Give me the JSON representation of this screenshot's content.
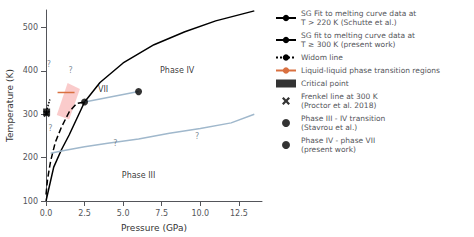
{
  "chart_data": {
    "type": "line",
    "xlabel": "Pressure (GPa)",
    "ylabel": "Temperature (K)",
    "xlim": [
      0,
      14
    ],
    "ylim": [
      100,
      540
    ],
    "xticks": [
      {
        "value": 0,
        "label": "0.0"
      },
      2.5,
      {
        "value": 5.0,
        "label": "5.0"
      },
      7.5,
      {
        "value": 10.0,
        "label": "10.0"
      },
      12.5
    ],
    "yticks": [
      100,
      200,
      300,
      400,
      500
    ],
    "grid": false,
    "legend": "right",
    "series": [
      {
        "name": "SG Fit to melting curve data at\nT > 220 K (Schutte et al.)",
        "type": "line",
        "color": "black",
        "line_style": "dashed",
        "x": [
          0.0,
          0.1,
          0.3,
          0.6,
          1.0,
          1.5,
          2.0,
          2.5
        ],
        "values": [
          115,
          150,
          192,
          235,
          270,
          305,
          325,
          328
        ]
      },
      {
        "name": "SG fit to melting curve data at\nT ≥ 300 K (present work)",
        "type": "line",
        "color": "black",
        "line_style": "solid",
        "x": [
          0.0,
          0.5,
          1.0,
          1.5,
          2.5,
          3.5,
          5.0,
          7.0,
          9.0,
          11.0,
          13.5
        ],
        "values": [
          100,
          178,
          218,
          252,
          328,
          373,
          418,
          460,
          490,
          515,
          538
        ]
      },
      {
        "name": "Widom line",
        "type": "line",
        "color": "black",
        "line_style": "dotted",
        "x": [
          0.02,
          0.05,
          0.1,
          0.15,
          0.2,
          0.25
        ],
        "values": [
          305,
          308,
          315,
          322,
          328,
          334
        ]
      },
      {
        "type": "line",
        "color": "#a0b8cc",
        "line_style": "solid",
        "x": [
          0.3,
          1.0,
          2.5,
          4.0,
          6.0,
          8.0,
          10.0,
          12.0,
          13.5
        ],
        "values": [
          210,
          215,
          225,
          233,
          243,
          256,
          267,
          280,
          300
        ]
      },
      {
        "type": "line",
        "color": "#a0b8cc",
        "line_style": "solid",
        "x": [
          2.5,
          6.0
        ],
        "values": [
          328,
          352
        ]
      },
      {
        "type": "fill",
        "color": "#f5a0a0",
        "x": [
          0.7,
          1.4,
          2.2,
          1.5
        ],
        "values": [
          298,
          372,
          358,
          288
        ]
      },
      {
        "name": "Liquid-liquid phase transition regions",
        "type": "line",
        "color": "#d97040",
        "line_style": "solid",
        "x": [
          0.75,
          1.85
        ],
        "values": [
          350,
          350
        ]
      },
      {
        "name": "Critical point",
        "type": "scatter",
        "marker": "square",
        "color": "black",
        "x": [
          0.04
        ],
        "values": [
          305
        ]
      },
      {
        "name": "Frenkel line at 300 K\n(Proctor et al. 2018)",
        "type": "scatter",
        "marker": "x",
        "color": "black",
        "x": [
          0.04
        ],
        "values": [
          301
        ]
      },
      {
        "name": "Phase III - IV transition\n(Stavrou et al.)",
        "type": "scatter",
        "marker": "circle",
        "color": "black",
        "x": [
          2.5
        ],
        "values": [
          328
        ]
      },
      {
        "name": "Phase IV - phase VII\n(present work)",
        "type": "scatter",
        "marker": "circle",
        "color": "black",
        "x": [
          6.0
        ],
        "values": [
          352
        ]
      }
    ],
    "annotations": [
      {
        "text": "Phase IV",
        "x": 8.5,
        "y": 400
      },
      {
        "text": "Phase III",
        "x": 6.0,
        "y": 158
      },
      {
        "text": "VII",
        "x": 3.7,
        "y": 358
      },
      {
        "text": "?",
        "x": 0.18,
        "y": 415,
        "color": "#607080"
      },
      {
        "text": "?",
        "x": 1.6,
        "y": 400,
        "color": "#607080"
      },
      {
        "text": "?",
        "x": 0.28,
        "y": 268,
        "color": "#607080"
      },
      {
        "text": "?",
        "x": 4.5,
        "y": 232,
        "color": "#607080"
      },
      {
        "text": "?",
        "x": 9.8,
        "y": 248,
        "color": "#607080"
      }
    ]
  }
}
